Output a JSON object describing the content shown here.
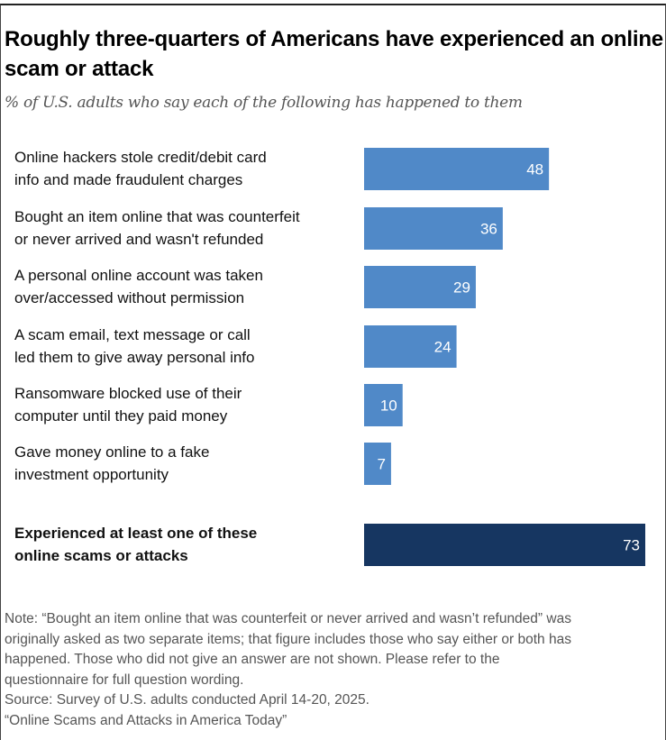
{
  "title": "Roughly three-quarters of Americans have experienced an online scam or attack",
  "subtitle": "% of U.S. adults who say each of the following has happened to them",
  "chart_data": {
    "type": "bar",
    "orientation": "horizontal",
    "title": "Roughly three-quarters of Americans have experienced an online scam or attack",
    "subtitle": "% of U.S. adults who say each of the following has happened to them",
    "categories": [
      "Online hackers stole credit/debit card info and made fraudulent charges",
      "Bought an item online that was counterfeit or never arrived and wasn't refunded",
      "A personal online account was taken over/accessed without permission",
      "A scam email, text message or call led them to give away personal info",
      "Ransomware blocked use of their computer until they paid money",
      "Gave money online to a fake investment opportunity",
      "Experienced at least one of these online scams or attacks"
    ],
    "label_lines": [
      [
        "Online hackers stole credit/debit card",
        "info and made fraudulent charges"
      ],
      [
        "Bought an item online that was counterfeit",
        "or never arrived and wasn't refunded"
      ],
      [
        "A personal online account was taken",
        "over/accessed without permission"
      ],
      [
        "A scam email, text message or call",
        "led them to give away personal info"
      ],
      [
        "Ransomware blocked use of their",
        "computer until they paid money"
      ],
      [
        "Gave money online to a fake",
        "investment opportunity"
      ],
      [
        "Experienced at least one of these",
        "online scams or attacks"
      ]
    ],
    "values": [
      48,
      36,
      29,
      24,
      10,
      7,
      73
    ],
    "data_labels": [
      "48",
      "36",
      "29",
      "24",
      "10",
      "7",
      "73"
    ],
    "xlim": [
      0,
      73
    ],
    "grid": false,
    "colors": {
      "item": "#5089c8",
      "total": "#163661"
    }
  },
  "note": [
    "Note: “Bought an item online that was counterfeit or never arrived and wasn’t refunded” was",
    "originally asked as two separate items; that figure includes those who say either or both has",
    "happened. Those who did not give an answer are not shown. Please refer to the",
    "questionnaire for full question wording.",
    "Source: Survey of U.S. adults conducted April 14-20, 2025.",
    "“Online Scams and Attacks in America Today”"
  ]
}
